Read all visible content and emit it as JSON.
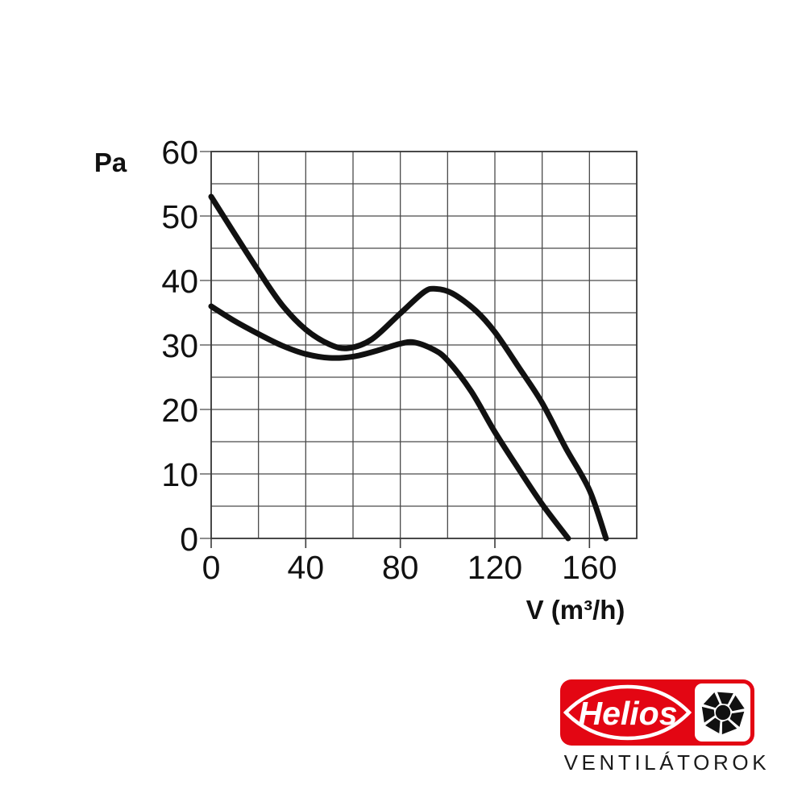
{
  "chart_data": {
    "type": "line",
    "title": "",
    "xlabel": "V (m³/h)",
    "ylabel": "Pa",
    "xlim": [
      0,
      180
    ],
    "ylim": [
      0,
      60
    ],
    "x_ticks": [
      0,
      40,
      80,
      120,
      160
    ],
    "y_ticks": [
      0,
      10,
      20,
      30,
      40,
      50,
      60
    ],
    "grid": "on",
    "grid_step_x": 20,
    "grid_step_y": 5,
    "legend_position": "none",
    "grid_color": "#4a4a4a",
    "curve_color": "#111111",
    "series": [
      {
        "name": "fan-curve-high-speed",
        "points": [
          [
            0,
            53
          ],
          [
            10,
            47.2
          ],
          [
            20,
            41.5
          ],
          [
            30,
            36.2
          ],
          [
            40,
            32.4
          ],
          [
            50,
            30.1
          ],
          [
            58,
            29.5
          ],
          [
            68,
            30.9
          ],
          [
            80,
            34.9
          ],
          [
            90,
            38.2
          ],
          [
            95,
            38.7
          ],
          [
            102,
            38
          ],
          [
            112,
            35.3
          ],
          [
            120,
            32
          ],
          [
            130,
            26.6
          ],
          [
            140,
            21
          ],
          [
            150,
            14
          ],
          [
            160,
            7.5
          ],
          [
            167,
            0
          ]
        ]
      },
      {
        "name": "fan-curve-low-speed",
        "points": [
          [
            0,
            36
          ],
          [
            10,
            33.7
          ],
          [
            20,
            31.7
          ],
          [
            30,
            29.9
          ],
          [
            40,
            28.6
          ],
          [
            50,
            28
          ],
          [
            60,
            28.2
          ],
          [
            70,
            29.1
          ],
          [
            80,
            30.2
          ],
          [
            86,
            30.4
          ],
          [
            94,
            29.3
          ],
          [
            100,
            27.6
          ],
          [
            110,
            22.8
          ],
          [
            120,
            16.5
          ],
          [
            130,
            10.8
          ],
          [
            140,
            5.3
          ],
          [
            151,
            0
          ]
        ]
      }
    ]
  },
  "logo": {
    "brand": "Helios",
    "subtitle": "VENTILÁTOROK",
    "brand_red": "#e30613",
    "fan_icon": "fan-impeller-icon",
    "text_color": "#ffffff"
  }
}
